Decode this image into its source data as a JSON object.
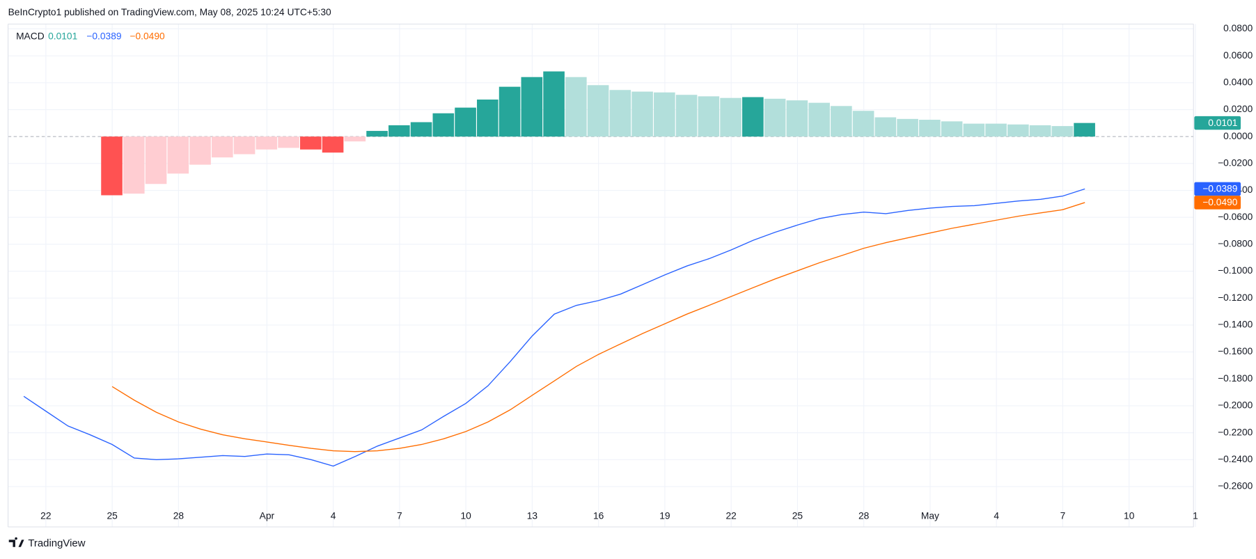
{
  "header": {
    "text": "BeInCrypto1 published on TradingView.com, May 08, 2025 10:24 UTC+5:30"
  },
  "footer": {
    "brand": "TradingView"
  },
  "chart_data": {
    "type": "macd",
    "legend_title": "MACD",
    "categories": [
      null,
      "22",
      null,
      null,
      "25",
      null,
      null,
      "28",
      null,
      null,
      null,
      "Apr",
      null,
      null,
      "4",
      null,
      null,
      "7",
      null,
      null,
      "10",
      null,
      null,
      "13",
      null,
      null,
      "16",
      null,
      null,
      "19",
      null,
      null,
      "22",
      null,
      null,
      "25",
      null,
      null,
      "28",
      null,
      null,
      "May",
      null,
      null,
      "4",
      null,
      null,
      "7",
      null,
      null,
      "10",
      null,
      null,
      "1"
    ],
    "ylim": [
      -0.29,
      0.0836
    ],
    "yticks": [
      {
        "value": 0.08,
        "label": "0.0800"
      },
      {
        "value": 0.06,
        "label": "0.0600"
      },
      {
        "value": 0.04,
        "label": "0.0400"
      },
      {
        "value": 0.02,
        "label": "0.0200"
      },
      {
        "value": 0,
        "label": "0.0000"
      },
      {
        "value": -0.02,
        "label": "−0.0200"
      },
      {
        "value": -0.04,
        "label": "−0.0400"
      },
      {
        "value": -0.06,
        "label": "−0.0600"
      },
      {
        "value": -0.08,
        "label": "−0.0800"
      },
      {
        "value": -0.1,
        "label": "−0.1000"
      },
      {
        "value": -0.12,
        "label": "−0.1200"
      },
      {
        "value": -0.14,
        "label": "−0.1400"
      },
      {
        "value": -0.16,
        "label": "−0.1600"
      },
      {
        "value": -0.18,
        "label": "−0.1800"
      },
      {
        "value": -0.2,
        "label": "−0.2000"
      },
      {
        "value": -0.22,
        "label": "−0.2200"
      },
      {
        "value": -0.24,
        "label": "−0.2400"
      },
      {
        "value": -0.26,
        "label": "−0.2600"
      }
    ],
    "grid": true,
    "series": [
      {
        "type": "bar",
        "color": "#26a69a",
        "value_label": "0.0101",
        "values": [
          null,
          null,
          null,
          null,
          -0.0436,
          -0.0424,
          -0.0352,
          -0.0275,
          -0.0209,
          -0.0155,
          -0.0131,
          -0.0096,
          -0.0084,
          -0.0096,
          -0.0119,
          -0.0036,
          0.0042,
          0.0084,
          0.0107,
          0.0173,
          0.0215,
          0.0275,
          0.037,
          0.0442,
          0.0484,
          0.0442,
          0.0382,
          0.0346,
          0.0334,
          0.0328,
          0.031,
          0.0299,
          0.0287,
          0.0293,
          0.0281,
          0.0269,
          0.0251,
          0.0227,
          0.0191,
          0.0143,
          0.0131,
          0.0125,
          0.0113,
          0.0096,
          0.0096,
          0.009,
          0.0084,
          0.0078,
          0.0101,
          null,
          null,
          null,
          null,
          null
        ],
        "bar_colors": [
          null,
          null,
          null,
          null,
          "#ff5252",
          "#ffcdd2",
          "#ffcdd2",
          "#ffcdd2",
          "#ffcdd2",
          "#ffcdd2",
          "#ffcdd2",
          "#ffcdd2",
          "#ffcdd2",
          "#ff5252",
          "#ff5252",
          "#ffcdd2",
          "#26a69a",
          "#26a69a",
          "#26a69a",
          "#26a69a",
          "#26a69a",
          "#26a69a",
          "#26a69a",
          "#26a69a",
          "#26a69a",
          "#b2dfdb",
          "#b2dfdb",
          "#b2dfdb",
          "#b2dfdb",
          "#b2dfdb",
          "#b2dfdb",
          "#b2dfdb",
          "#b2dfdb",
          "#26a69a",
          "#b2dfdb",
          "#b2dfdb",
          "#b2dfdb",
          "#b2dfdb",
          "#b2dfdb",
          "#b2dfdb",
          "#b2dfdb",
          "#b2dfdb",
          "#b2dfdb",
          "#b2dfdb",
          "#b2dfdb",
          "#b2dfdb",
          "#b2dfdb",
          "#b2dfdb",
          "#26a69a",
          null,
          null,
          null,
          null,
          null
        ]
      },
      {
        "type": "line",
        "color": "#2962ff",
        "value_label": "−0.0389",
        "values": [
          -0.193,
          -0.204,
          -0.215,
          -0.2215,
          -0.2287,
          -0.2388,
          -0.24,
          -0.2394,
          -0.2382,
          -0.237,
          -0.2376,
          -0.2358,
          -0.2364,
          -0.24,
          -0.2448,
          -0.2376,
          -0.2299,
          -0.2239,
          -0.2179,
          -0.2078,
          -0.1982,
          -0.1851,
          -0.1672,
          -0.1481,
          -0.1319,
          -0.1254,
          -0.1218,
          -0.117,
          -0.1099,
          -0.1027,
          -0.0961,
          -0.0907,
          -0.0842,
          -0.077,
          -0.071,
          -0.0657,
          -0.0609,
          -0.0579,
          -0.0561,
          -0.0573,
          -0.0549,
          -0.0531,
          -0.0519,
          -0.0513,
          -0.0496,
          -0.0478,
          -0.0466,
          -0.0442,
          -0.0389,
          null,
          null,
          null,
          null,
          null
        ]
      },
      {
        "type": "line",
        "color": "#ff6d00",
        "value_label": "−0.0490",
        "values": [
          null,
          null,
          null,
          null,
          -0.1857,
          -0.1958,
          -0.2048,
          -0.212,
          -0.2173,
          -0.2215,
          -0.2245,
          -0.2269,
          -0.2293,
          -0.2316,
          -0.2334,
          -0.234,
          -0.2334,
          -0.2316,
          -0.2287,
          -0.2245,
          -0.2191,
          -0.212,
          -0.203,
          -0.1922,
          -0.1815,
          -0.1707,
          -0.1618,
          -0.154,
          -0.1463,
          -0.1391,
          -0.1319,
          -0.1254,
          -0.1188,
          -0.1122,
          -0.1057,
          -0.0997,
          -0.0937,
          -0.0884,
          -0.083,
          -0.0788,
          -0.0752,
          -0.0716,
          -0.0681,
          -0.0651,
          -0.0621,
          -0.0591,
          -0.0567,
          -0.0543,
          -0.049,
          null,
          null,
          null,
          null,
          null
        ]
      }
    ]
  }
}
